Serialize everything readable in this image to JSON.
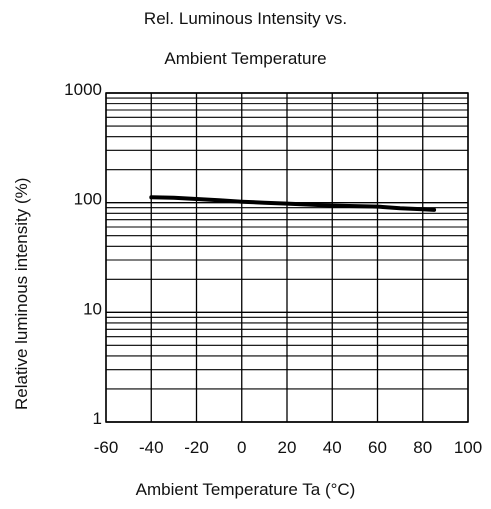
{
  "chart_data": {
    "type": "line",
    "title_lines": [
      "Rel. Luminous Intensity vs.",
      "Ambient Temperature"
    ],
    "xlabel": "Ambient Temperature Ta (°C)",
    "ylabel": "Relative luminous intensity (%)",
    "x_ticks": [
      "-60",
      "-40",
      "-20",
      "0",
      "20",
      "40",
      "60",
      "80",
      "100"
    ],
    "y_ticks": [
      "1",
      "10",
      "100",
      "1000"
    ],
    "xlim": [
      -60,
      100
    ],
    "ylim": [
      1,
      1000
    ],
    "y_scale": "log",
    "grid": true,
    "series": [
      {
        "x": [
          -40,
          -30,
          -20,
          -10,
          0,
          10,
          20,
          30,
          40,
          50,
          60,
          70,
          80,
          85
        ],
        "y": [
          112,
          111,
          108,
          105,
          102,
          100,
          98,
          96,
          94,
          93,
          92,
          89,
          87,
          86
        ]
      }
    ]
  }
}
